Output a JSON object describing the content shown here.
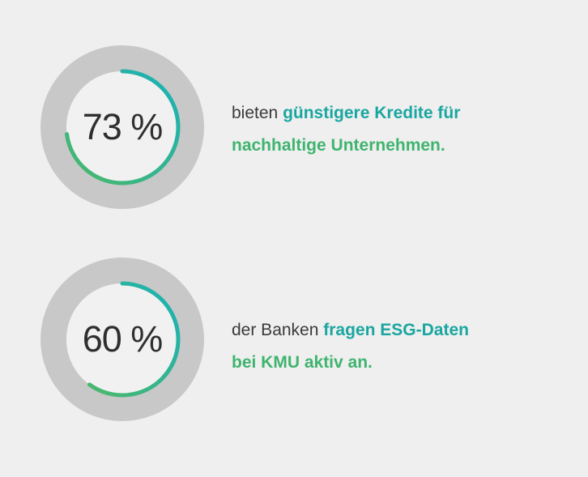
{
  "colors": {
    "background": "#efefef",
    "track": "#c8c8c8",
    "inner": "#f1f1f1",
    "gradient_start": "#4cb86a",
    "gradient_end": "#19b1b9",
    "text": "#3a3a3a"
  },
  "chart_data": [
    {
      "type": "pie",
      "variant": "donut-gauge",
      "value": 73,
      "max": 100,
      "unit": "%",
      "label": "73 %"
    },
    {
      "type": "pie",
      "variant": "donut-gauge",
      "value": 60,
      "max": 100,
      "unit": "%",
      "label": "60 %"
    }
  ],
  "stats": [
    {
      "line1_plain": "bieten ",
      "line1_highlight": "günstigere Kredite für",
      "line2_highlight": "nachhaltige Unternehmen.",
      "highlight_color": "#1aa6a0",
      "highlight2_color": "#3fb46f"
    },
    {
      "line1_plain": "der Banken ",
      "line1_highlight": "fragen ESG-Daten",
      "line2_highlight": "bei KMU aktiv an.",
      "highlight_color": "#1aa6a0",
      "highlight2_color": "#3fb46f"
    }
  ]
}
